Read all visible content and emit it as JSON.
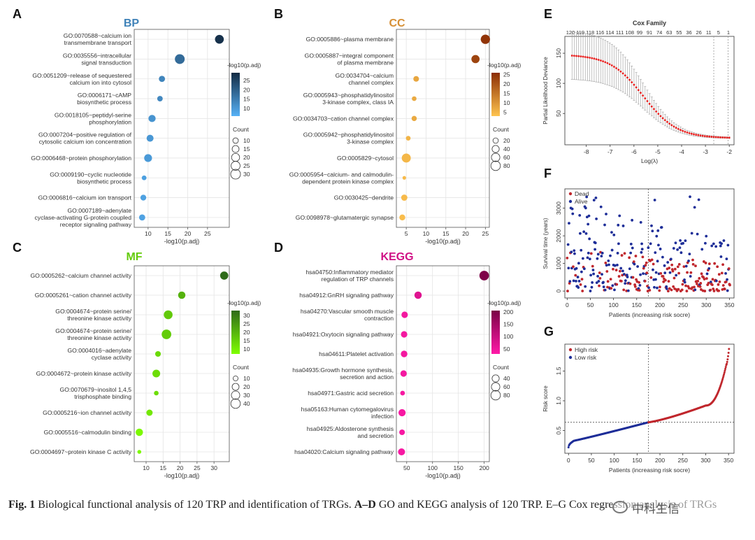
{
  "figure": {
    "caption_label": "Fig. 1",
    "caption_text1": "Biological functional analysis of 120 TRP and identification of TRGs.",
    "caption_bold": "A–D",
    "caption_text2": "GO and KEGG analysis of 120 TRP.",
    "caption_text3": "E–G Cox regression analysis of TRGs",
    "watermark": "中科生信"
  },
  "chart_data": [
    {
      "id": "A",
      "type": "scatter",
      "subtype": "dotplot",
      "title": "BP",
      "xlabel": "-log10(p.adj)",
      "xlim": [
        6.5,
        30.5
      ],
      "xticks": [
        10,
        15,
        20,
        25
      ],
      "color_low": "#56b1f7",
      "color_high": "#132b43",
      "cmin": 6,
      "cmax": 29,
      "legend_color_title": "-log10(p.adj)",
      "legend_color_ticks": [
        10,
        15,
        20,
        25
      ],
      "legend_size_title": "Count",
      "legend_size_ticks": [
        10,
        15,
        20,
        25,
        30
      ],
      "smin": 5,
      "smax": 30,
      "terms": [
        {
          "label": [
            "GO:0070588~calcium ion",
            "transmembrane transport"
          ],
          "x": 28,
          "count": 24
        },
        {
          "label": [
            "GO:0035556~intracellular",
            "signal transduction"
          ],
          "x": 18,
          "count": 30
        },
        {
          "label": [
            "GO:0051209~release of sequestered",
            "calcium ion into cytosol"
          ],
          "x": 13.5,
          "count": 12
        },
        {
          "label": [
            "GO:0006171~cAMP",
            "biosynthetic process"
          ],
          "x": 13,
          "count": 10
        },
        {
          "label": [
            "GO:0018105~peptidyl-serine",
            "phosphorylation"
          ],
          "x": 11,
          "count": 16
        },
        {
          "label": [
            "GO:0007204~positive regulation of",
            "cytosolic calcium ion concentration"
          ],
          "x": 10.5,
          "count": 15
        },
        {
          "label": [
            "GO:0006468~protein phosphorylation"
          ],
          "x": 10,
          "count": 19
        },
        {
          "label": [
            "GO:0009190~cyclic nucleotide",
            "biosynthetic process"
          ],
          "x": 9,
          "count": 8
        },
        {
          "label": [
            "GO:0006816~calcium ion transport"
          ],
          "x": 8.8,
          "count": 11
        },
        {
          "label": [
            "GO:0007189~adenylate",
            "cyclase-activating G-protein coupled",
            "receptor signaling pathway"
          ],
          "x": 8.5,
          "count": 12
        }
      ]
    },
    {
      "id": "B",
      "type": "scatter",
      "subtype": "dotplot",
      "title": "CC",
      "xlabel": "-log10(p.adj)",
      "xlim": [
        2.5,
        26
      ],
      "xticks": [
        5,
        10,
        15,
        20,
        25
      ],
      "color_low": "#fec44f",
      "color_high": "#8c2d04",
      "cmin": 3,
      "cmax": 26,
      "legend_color_title": "-log10(p.adj)",
      "legend_color_ticks": [
        5,
        10,
        15,
        20,
        25
      ],
      "legend_size_title": "Count",
      "legend_size_ticks": [
        20,
        40,
        60,
        80
      ],
      "smin": 5,
      "smax": 85,
      "terms": [
        {
          "label": [
            "GO:0005886~plasma membrane"
          ],
          "x": 25,
          "count": 75
        },
        {
          "label": [
            "GO:0005887~integral component",
            "of plasma membrane"
          ],
          "x": 22.5,
          "count": 55
        },
        {
          "label": [
            "GO:0034704~calcium",
            "channel complex"
          ],
          "x": 7.5,
          "count": 22
        },
        {
          "label": [
            "GO:0005943~phosphatidylinositol",
            "3-kinase complex, class IA"
          ],
          "x": 7,
          "count": 14
        },
        {
          "label": [
            "GO:0034703~cation channel complex"
          ],
          "x": 7,
          "count": 18
        },
        {
          "label": [
            "GO:0005942~phosphatidylinositol",
            "3-kinase complex"
          ],
          "x": 5.5,
          "count": 14
        },
        {
          "label": [
            "GO:0005829~cytosol"
          ],
          "x": 5,
          "count": 70
        },
        {
          "label": [
            "GO:0005954~calcium- and calmodulin-",
            "dependent protein kinase complex"
          ],
          "x": 4.5,
          "count": 8
        },
        {
          "label": [
            "GO:0030425~dendrite"
          ],
          "x": 4.5,
          "count": 28
        },
        {
          "label": [
            "GO:0098978~glutamatergic synapse"
          ],
          "x": 4,
          "count": 25
        }
      ]
    },
    {
      "id": "C",
      "type": "scatter",
      "subtype": "dotplot",
      "title": "MF",
      "xlabel": "-log10(p.adj)",
      "xlim": [
        6.5,
        34.5
      ],
      "xticks": [
        10,
        15,
        20,
        25,
        30
      ],
      "color_low": "#7fff00",
      "color_high": "#2f6b1a",
      "cmin": 7,
      "cmax": 33,
      "legend_color_title": "-log10(p.adj)",
      "legend_color_ticks": [
        10,
        15,
        20,
        25,
        30
      ],
      "legend_size_title": "Count",
      "legend_size_ticks": [
        10,
        20,
        30,
        40
      ],
      "smin": 5,
      "smax": 42,
      "terms": [
        {
          "label": [
            "GO:0005262~calcium channel activity"
          ],
          "x": 33,
          "count": 28
        },
        {
          "label": [
            "GO:0005261~cation channel activity"
          ],
          "x": 20.5,
          "count": 22
        },
        {
          "label": [
            "GO:0004674~protein serine/",
            "threonine kinase activity"
          ],
          "x": 16.5,
          "count": 33
        },
        {
          "label": [
            "GO:0004674~protein serine/",
            "threonine kinase activity"
          ],
          "x": 16,
          "count": 40
        },
        {
          "label": [
            "GO:0004016~adenylate",
            "cyclase activity"
          ],
          "x": 13.5,
          "count": 13
        },
        {
          "label": [
            "GO:0004672~protein kinase activity"
          ],
          "x": 13,
          "count": 25
        },
        {
          "label": [
            "GO:0070679~inositol 1,4,5",
            "trisphosphate binding"
          ],
          "x": 13,
          "count": 9
        },
        {
          "label": [
            "GO:0005216~ion channel activity"
          ],
          "x": 11,
          "count": 16
        },
        {
          "label": [
            "GO:0005516~calmodulin binding"
          ],
          "x": 8,
          "count": 22
        },
        {
          "label": [
            "GO:0004697~protein kinase C activity"
          ],
          "x": 8,
          "count": 7
        }
      ]
    },
    {
      "id": "D",
      "type": "scatter",
      "subtype": "dotplot",
      "title": "KEGG",
      "xlabel": "-log10(p.adj)",
      "xlim": [
        30,
        210
      ],
      "xticks": [
        50,
        100,
        150,
        200
      ],
      "color_low": "#ff1aa8",
      "color_high": "#7a0045",
      "cmin": 30,
      "cmax": 205,
      "legend_color_title": "-log10(p.adj)",
      "legend_color_ticks": [
        50,
        100,
        150,
        200
      ],
      "legend_size_title": "Count",
      "legend_size_ticks": [
        40,
        60,
        80
      ],
      "smin": 5,
      "smax": 85,
      "terms": [
        {
          "label": [
            "hsa04750:Inflammatory mediator",
            "regulation of TRP channels"
          ],
          "x": 200,
          "count": 80
        },
        {
          "label": [
            "hsa04912:GnRH signaling pathway"
          ],
          "x": 72,
          "count": 42
        },
        {
          "label": [
            "hsa04270:Vascular smooth muscle",
            "contraction"
          ],
          "x": 46,
          "count": 30
        },
        {
          "label": [
            "hsa04921:Oxytocin signaling pathway"
          ],
          "x": 45,
          "count": 30
        },
        {
          "label": [
            "hsa04611:Platelet activation"
          ],
          "x": 45,
          "count": 32
        },
        {
          "label": [
            "hsa04935:Growth hormone synthesis,",
            "secretion and action"
          ],
          "x": 44,
          "count": 30
        },
        {
          "label": [
            "hsa04971:Gastric acid secretion"
          ],
          "x": 42,
          "count": 14
        },
        {
          "label": [
            "hsa05163:Human cytomegalovirus",
            "infection"
          ],
          "x": 41,
          "count": 40
        },
        {
          "label": [
            "hsa04925:Aldosterone synthesis",
            "and secretion"
          ],
          "x": 41,
          "count": 22
        },
        {
          "label": [
            "hsa04020:Calcium signaling pathway"
          ],
          "x": 40,
          "count": 38
        }
      ]
    },
    {
      "id": "E",
      "type": "line",
      "subtype": "lasso-cv",
      "title": "Cox Family",
      "xlabel": "Log(λ)",
      "ylabel": "Partial Likelihood Deviance",
      "xlim": [
        -8.9,
        -1.8
      ],
      "ylim": [
        -2,
        178
      ],
      "xticks": [
        -8,
        -7,
        -6,
        -5,
        -4,
        -3,
        -2
      ],
      "yticks": [
        50,
        100,
        150
      ],
      "top_ticks": [
        120,
        119,
        118,
        116,
        114,
        111,
        108,
        99,
        91,
        74,
        63,
        55,
        36,
        26,
        11,
        5,
        1
      ],
      "vlines": [
        -2.65,
        -2.05
      ],
      "n_points": 72,
      "color": "#e8201f",
      "curve": {
        "start_x": -8.6,
        "end_x": -2.0,
        "y_left": 146,
        "y_right": 9,
        "mid": -5.6,
        "scale": 0.7
      },
      "err": {
        "left": 40,
        "right": 1
      }
    },
    {
      "id": "F",
      "type": "scatter",
      "title": "",
      "xlabel": "Patients (increasing risk socre)",
      "ylabel": "Survival time (years)",
      "xlim": [
        -5,
        360
      ],
      "ylim": [
        -250,
        3700
      ],
      "xticks": [
        0,
        50,
        100,
        150,
        200,
        250,
        300,
        350
      ],
      "yticks": [
        0,
        1000,
        2000,
        3000
      ],
      "cutoff": 175,
      "legend": [
        {
          "name": "Dead",
          "color": "#c0272d"
        },
        {
          "name": "Alive",
          "color": "#1e2e98"
        }
      ],
      "n_points": 352
    },
    {
      "id": "G",
      "type": "scatter",
      "title": "",
      "xlabel": "Patients (increasing risk socre)",
      "ylabel": "Risk score",
      "xlim": [
        -8,
        362
      ],
      "ylim": [
        0.12,
        1.95
      ],
      "xticks": [
        0,
        50,
        100,
        150,
        200,
        250,
        300,
        350
      ],
      "yticks": [
        0.5,
        1.0,
        1.5
      ],
      "cutoff_x": 175,
      "cutoff_y": 0.64,
      "legend": [
        {
          "name": "High risk",
          "color": "#c0272d"
        },
        {
          "name": "Low risk",
          "color": "#1e2e98"
        }
      ],
      "n_points": 352,
      "curve": {
        "y_start": 0.22,
        "y_cut": 0.64,
        "y_300": 0.92,
        "y_345": 1.6,
        "y_end": 1.87
      }
    }
  ]
}
